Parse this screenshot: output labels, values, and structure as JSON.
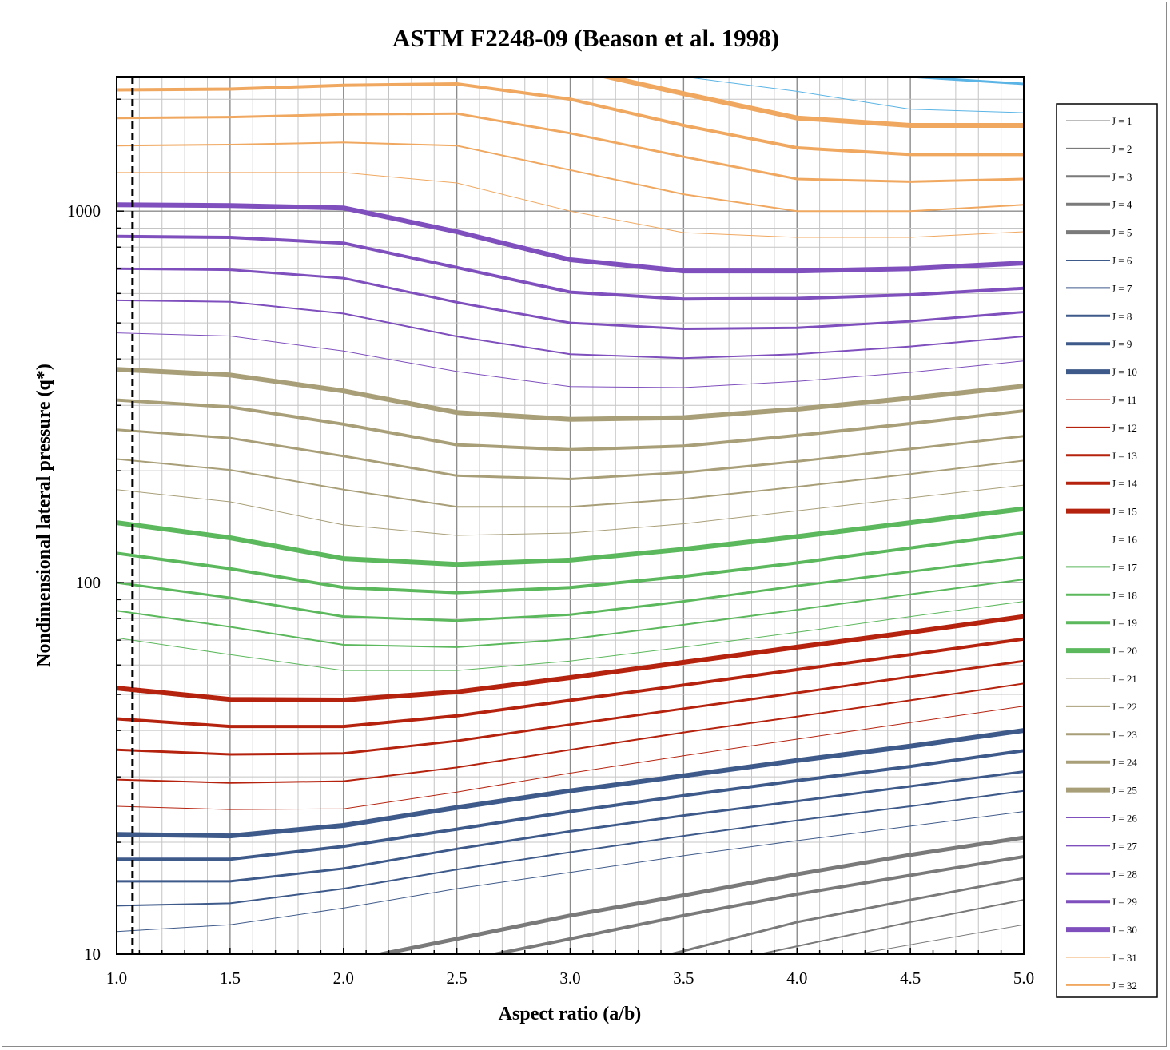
{
  "chart_data": {
    "type": "line",
    "title": "ASTM F2248-09 (Beason et al. 1998)",
    "xlabel": "Aspect ratio (a/b)",
    "ylabel": "Nondimensional lateral pressure (q*)",
    "x_scale": "linear",
    "y_scale": "log",
    "xlim": [
      1.0,
      5.0
    ],
    "ylim": [
      10,
      2300
    ],
    "x_ticks": [
      "1.0",
      "1.5",
      "2.0",
      "2.5",
      "3.0",
      "3.5",
      "4.0",
      "4.5",
      "5.0"
    ],
    "x_tick_values": [
      1.0,
      1.5,
      2.0,
      2.5,
      3.0,
      3.5,
      4.0,
      4.5,
      5.0
    ],
    "y_ticks": [
      "10",
      "100",
      "1000"
    ],
    "y_tick_values": [
      10,
      100,
      1000
    ],
    "grid": true,
    "legend_position": "right",
    "reference_line": {
      "x": 1.07,
      "style": "dashed"
    },
    "x": [
      1.0,
      1.5,
      2.0,
      2.5,
      3.0,
      3.5,
      4.0,
      4.5,
      5.0
    ],
    "series": [
      {
        "name": "J = 1",
        "color": "#7a7a7a",
        "width": 1,
        "values": [
          null,
          null,
          null,
          null,
          null,
          null,
          null,
          10.6,
          12.0
        ]
      },
      {
        "name": "J = 2",
        "color": "#7a7a7a",
        "width": 2,
        "values": [
          null,
          null,
          null,
          null,
          null,
          null,
          10.5,
          12.2,
          14.0
        ]
      },
      {
        "name": "J = 3",
        "color": "#7a7a7a",
        "width": 3,
        "values": [
          null,
          null,
          null,
          null,
          null,
          10.2,
          12.2,
          14.0,
          16.0
        ]
      },
      {
        "name": "J = 4",
        "color": "#7a7a7a",
        "width": 4,
        "values": [
          null,
          null,
          null,
          null,
          11.0,
          12.7,
          14.5,
          16.3,
          18.3
        ]
      },
      {
        "name": "J = 5",
        "color": "#7a7a7a",
        "width": 5,
        "values": [
          null,
          null,
          null,
          11.0,
          12.7,
          14.4,
          16.4,
          18.5,
          20.6
        ]
      },
      {
        "name": "J = 6",
        "color": "#3e5a8a",
        "width": 1,
        "values": [
          11.5,
          12.0,
          13.3,
          15.0,
          16.6,
          18.4,
          20.2,
          22.1,
          24.2
        ]
      },
      {
        "name": "J = 7",
        "color": "#3e5a8a",
        "width": 2,
        "values": [
          13.5,
          13.7,
          15.0,
          16.9,
          18.8,
          20.8,
          22.9,
          25.0,
          27.5
        ]
      },
      {
        "name": "J = 8",
        "color": "#3e5a8a",
        "width": 3,
        "values": [
          15.7,
          15.7,
          17.0,
          19.2,
          21.4,
          23.6,
          25.8,
          28.3,
          31.0
        ]
      },
      {
        "name": "J = 9",
        "color": "#3e5a8a",
        "width": 4,
        "values": [
          18.0,
          18.0,
          19.5,
          21.7,
          24.2,
          26.7,
          29.3,
          32.0,
          35.3
        ]
      },
      {
        "name": "J = 10",
        "color": "#3e5a8a",
        "width": 6,
        "values": [
          21.0,
          20.8,
          22.2,
          24.8,
          27.5,
          30.2,
          33.2,
          36.3,
          40.0
        ]
      },
      {
        "name": "J = 11",
        "color": "#b5230f",
        "width": 1,
        "values": [
          25.0,
          24.5,
          24.6,
          27.3,
          30.7,
          34.2,
          37.9,
          42.0,
          46.5
        ]
      },
      {
        "name": "J = 12",
        "color": "#b5230f",
        "width": 2,
        "values": [
          29.5,
          28.9,
          29.2,
          31.8,
          35.5,
          39.5,
          43.6,
          48.2,
          53.5
        ]
      },
      {
        "name": "J = 13",
        "color": "#b5230f",
        "width": 3,
        "values": [
          35.5,
          34.5,
          34.7,
          37.5,
          41.5,
          45.8,
          50.5,
          55.8,
          61.5
        ]
      },
      {
        "name": "J = 14",
        "color": "#b5230f",
        "width": 4,
        "values": [
          43.0,
          41.0,
          41.0,
          43.8,
          48.2,
          53.0,
          58.3,
          64.0,
          70.5
        ]
      },
      {
        "name": "J = 15",
        "color": "#b5230f",
        "width": 6,
        "values": [
          52.0,
          48.5,
          48.3,
          50.8,
          55.5,
          61.0,
          67.0,
          73.5,
          81.0
        ]
      },
      {
        "name": "J = 16",
        "color": "#5cb85c",
        "width": 1,
        "values": [
          71.0,
          64.0,
          58.0,
          58.0,
          61.5,
          67.0,
          73.5,
          81.0,
          89.0
        ]
      },
      {
        "name": "J = 17",
        "color": "#5cb85c",
        "width": 2,
        "values": [
          84.0,
          76.0,
          68.0,
          67.0,
          70.5,
          77.0,
          84.5,
          93.0,
          102.0
        ]
      },
      {
        "name": "J = 18",
        "color": "#5cb85c",
        "width": 3,
        "values": [
          100.0,
          91.0,
          81.0,
          79.0,
          82.0,
          89.0,
          98.0,
          107.0,
          117.0
        ]
      },
      {
        "name": "J = 19",
        "color": "#5cb85c",
        "width": 4,
        "values": [
          120.0,
          109.0,
          97.0,
          94.0,
          97.0,
          104.0,
          113.0,
          124.0,
          136.0
        ]
      },
      {
        "name": "J = 20",
        "color": "#5cb85c",
        "width": 6,
        "values": [
          145.0,
          132.0,
          116.0,
          112.0,
          115.0,
          123.0,
          133.0,
          145.0,
          158.0
        ]
      },
      {
        "name": "J = 21",
        "color": "#a89f78",
        "width": 1,
        "values": [
          178.0,
          165.0,
          143.0,
          134.0,
          136.0,
          144.0,
          156.0,
          169.0,
          183.0
        ]
      },
      {
        "name": "J = 22",
        "color": "#a89f78",
        "width": 2,
        "values": [
          215.0,
          201.0,
          178.0,
          160.0,
          160.0,
          168.0,
          181.0,
          196.0,
          213.0
        ]
      },
      {
        "name": "J = 23",
        "color": "#a89f78",
        "width": 3,
        "values": [
          258.0,
          245.0,
          219.0,
          194.0,
          190.0,
          198.0,
          212.0,
          229.0,
          248.0
        ]
      },
      {
        "name": "J = 24",
        "color": "#a89f78",
        "width": 4,
        "values": [
          310.0,
          297.0,
          267.0,
          235.0,
          228.0,
          233.0,
          249.0,
          268.0,
          290.0
        ]
      },
      {
        "name": "J = 25",
        "color": "#a89f78",
        "width": 6,
        "values": [
          375.0,
          362.0,
          328.0,
          287.0,
          275.0,
          278.0,
          293.0,
          314.0,
          338.0
        ]
      },
      {
        "name": "J = 26",
        "color": "#7e4fbd",
        "width": 1,
        "values": [
          470.0,
          461.0,
          420.0,
          370.0,
          337.0,
          335.0,
          348.0,
          368.0,
          395.0
        ]
      },
      {
        "name": "J = 27",
        "color": "#7e4fbd",
        "width": 2,
        "values": [
          575.0,
          570.0,
          530.0,
          460.0,
          412.0,
          402.0,
          412.0,
          432.0,
          460.0
        ]
      },
      {
        "name": "J = 28",
        "color": "#7e4fbd",
        "width": 3,
        "values": [
          700.0,
          695.0,
          660.0,
          568.0,
          500.0,
          482.0,
          485.0,
          505.0,
          535.0
        ]
      },
      {
        "name": "J = 29",
        "color": "#7e4fbd",
        "width": 4,
        "values": [
          855.0,
          850.0,
          820.0,
          705.0,
          605.0,
          580.0,
          582.0,
          595.0,
          620.0
        ]
      },
      {
        "name": "J = 30",
        "color": "#7e4fbd",
        "width": 6,
        "values": [
          1040.0,
          1035.0,
          1020.0,
          880.0,
          740.0,
          690.0,
          690.0,
          700.0,
          725.0
        ]
      },
      {
        "name": "J = 31",
        "color": "#f0a860",
        "width": 1,
        "values": [
          1270.0,
          1270.0,
          1270.0,
          1190.0,
          1000.0,
          875.0,
          850.0,
          850.0,
          880.0
        ]
      },
      {
        "name": "J = 32",
        "color": "#f0a860",
        "width": 2,
        "values": [
          1500.0,
          1510.0,
          1530.0,
          1500.0,
          1290.0,
          1110.0,
          1000.0,
          1000.0,
          1040.0
        ]
      },
      {
        "name": "",
        "color": "#f0a860",
        "width": 3,
        "values": [
          1780.0,
          1790.0,
          1820.0,
          1830.0,
          1620.0,
          1400.0,
          1220.0,
          1200.0,
          1220.0
        ]
      },
      {
        "name": "",
        "color": "#f0a860",
        "width": 4,
        "values": [
          2120.0,
          2130.0,
          2180.0,
          2200.0,
          2000.0,
          1700.0,
          1480.0,
          1420.0,
          1420.0
        ]
      },
      {
        "name": "",
        "color": "#f0a860",
        "width": 6,
        "values": [
          2510.0,
          2520.0,
          2580.0,
          2650.0,
          2420.0,
          2070.0,
          1780.0,
          1700.0,
          1700.0
        ]
      },
      {
        "name": "",
        "color": "#5ab4e5",
        "width": 1,
        "values": [
          null,
          null,
          null,
          null,
          null,
          2300.0,
          2100.0,
          1880.0,
          1840.0
        ]
      },
      {
        "name": "",
        "color": "#5ab4e5",
        "width": 3,
        "values": [
          null,
          null,
          null,
          null,
          null,
          null,
          null,
          2300.0,
          2200.0
        ]
      }
    ]
  }
}
